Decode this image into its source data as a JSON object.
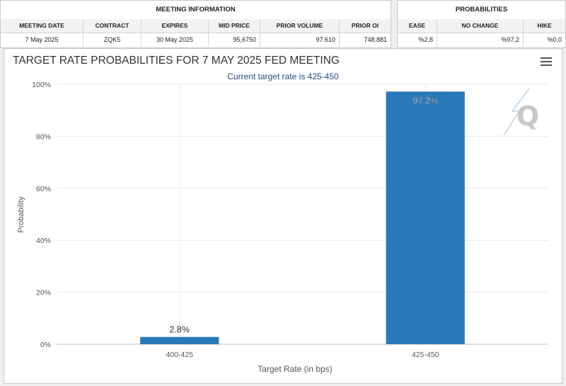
{
  "meeting_info": {
    "title": "MEETING INFORMATION",
    "headers": [
      "MEETING DATE",
      "CONTRACT",
      "EXPIRES",
      "MID PRICE",
      "PRIOR VOLUME",
      "PRIOR OI"
    ],
    "values": [
      "7 May 2025",
      "ZQK5",
      "30 May 2025",
      "95,6750",
      "97.610",
      "748.881"
    ]
  },
  "probabilities": {
    "title": "PROBABILITIES",
    "headers": [
      "EASE",
      "NO CHANGE",
      "HIKE"
    ],
    "values": [
      "%2,8",
      "%97,2",
      "%0,0"
    ]
  },
  "chart": {
    "logo_letter": "Q"
  },
  "chart_data": {
    "type": "bar",
    "title": "TARGET RATE PROBABILITIES FOR 7 MAY 2025 FED MEETING",
    "subtitle": "Current target rate is 425-450",
    "xlabel": "Target Rate (in bps)",
    "ylabel": "Probability",
    "categories": [
      "400-425",
      "425-450"
    ],
    "values": [
      2.8,
      97.2
    ],
    "data_labels": [
      "2.8%",
      "97.2%"
    ],
    "ylim": [
      0,
      100
    ],
    "yticks": [
      0,
      20,
      40,
      60,
      80,
      100
    ],
    "ytick_labels": [
      "0%",
      "20%",
      "40%",
      "60%",
      "80%",
      "100%"
    ],
    "bar_color": "#2a7ab9",
    "grid": true
  }
}
